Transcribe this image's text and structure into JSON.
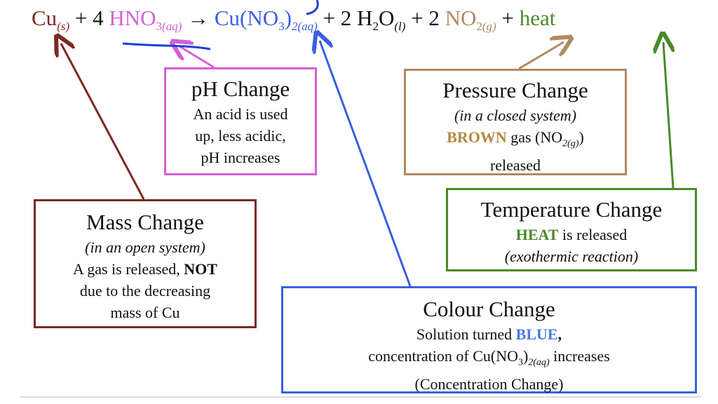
{
  "equation": {
    "cu": {
      "base": "Cu",
      "state": "(s)"
    },
    "op1": "+ 4",
    "hno3": {
      "base": "HNO",
      "sub": "3",
      "state": "(aq)"
    },
    "arrow": "→",
    "cuno3": {
      "base": "Cu(NO",
      "sub": "3",
      "close": ")",
      "state": "2(aq)"
    },
    "op2": "+ 2",
    "h2o": {
      "base": "H",
      "sub": "2",
      "base2": "O",
      "state": "(l)"
    },
    "op3": "+ 2",
    "no2": {
      "base": "NO",
      "sub": "2",
      "state": "(g)"
    },
    "op4": "+",
    "heat": "heat"
  },
  "boxes": {
    "ph": {
      "title": "pH Change",
      "lines": [
        "An acid is used",
        "up, less acidic,",
        "pH increases"
      ]
    },
    "pressure": {
      "title": "Pressure Change",
      "note": "(in a closed system)",
      "line1": {
        "bold": "BROWN",
        "text": " gas (NO",
        "sub": "2(g)",
        "close": ")"
      },
      "line2": "released"
    },
    "mass": {
      "title": "Mass Change",
      "note": "(in an open system)",
      "line1": {
        "text": "A gas is released, ",
        "bold": "NOT"
      },
      "lines": [
        "due to the decreasing",
        "mass of Cu"
      ]
    },
    "temperature": {
      "title": "Temperature Change",
      "line1": {
        "bold": "HEAT",
        "text": " is released"
      },
      "note": "(exothermic reaction)"
    },
    "colour": {
      "title": "Colour Change",
      "line1": {
        "text": "Solution turned ",
        "bold": "BLUE",
        "after": ","
      },
      "line2": {
        "text": "concentration of Cu(NO",
        "sub": "3",
        "close": ")",
        "sub2": "2(aq)",
        "after": " increases"
      },
      "line3": "(Concentration Change)"
    }
  }
}
